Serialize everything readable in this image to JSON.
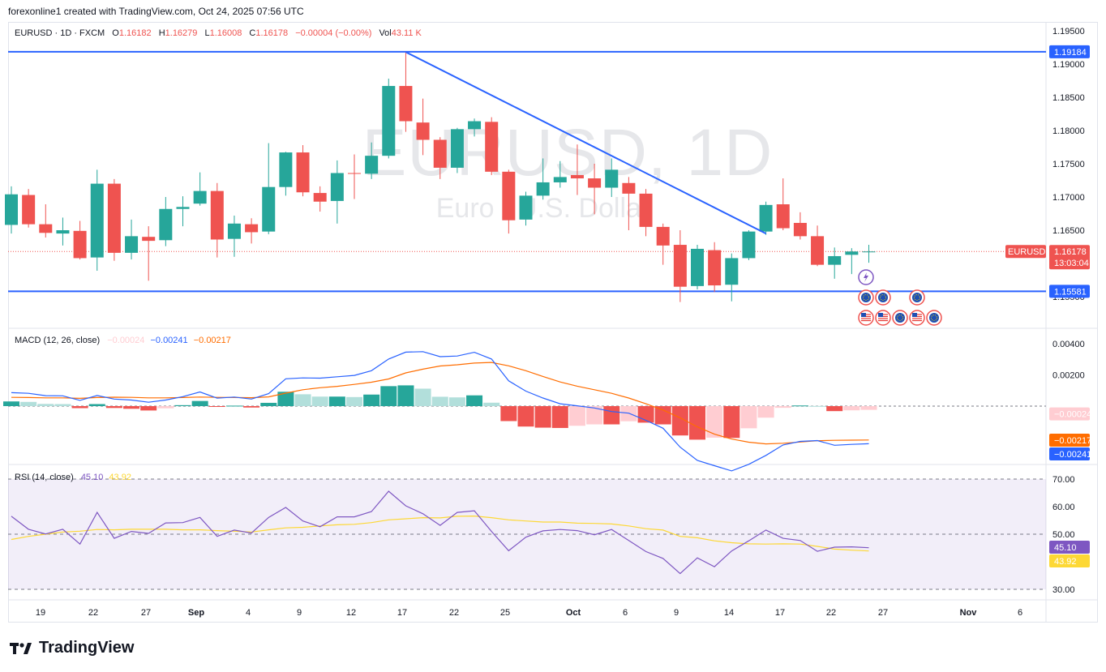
{
  "attribution": "forexonline1 created with TradingView.com, Oct 24, 2025 07:56 UTC",
  "brand": "TradingView",
  "legend": {
    "symbol": "EURUSD · 1D · FXCM",
    "open_label": "O",
    "open": "1.16182",
    "high_label": "H",
    "high": "1.16279",
    "low_label": "L",
    "low": "1.16008",
    "close_label": "C",
    "close": "1.16178",
    "change": "−0.00004 (−0.00%)",
    "vol_label": "Vol",
    "vol": "43.11 K"
  },
  "watermark": {
    "symbol": "EURUSD, 1D",
    "description": "Euro / U.S. Dollar"
  },
  "colors": {
    "up": "#26a69a",
    "down": "#ef5350",
    "line": "#2962ff",
    "macd_line": "#2962ff",
    "signal_line": "#ff6d00",
    "rsi_line": "#7e57c2",
    "rsi_ma": "#fdd835",
    "hist_up_strong": "#26a69a",
    "hist_up_weak": "#b2dfdb",
    "hist_down_strong": "#ef5350",
    "hist_down_weak": "#ffcdd2"
  },
  "price_axis": {
    "ticks": [
      "1.19500",
      "1.19000",
      "1.18500",
      "1.18000",
      "1.17500",
      "1.17000",
      "1.16500",
      "1.16000",
      "1.15500"
    ]
  },
  "price_tags": {
    "resistance": "1.19184",
    "support": "1.15581",
    "current_symbol": "EURUSD",
    "current_price": "1.16178",
    "countdown": "13:03:04"
  },
  "macd": {
    "title": "MACD (12, 26, close)",
    "hist_value": "−0.00024",
    "macd_value": "−0.00241",
    "signal_value": "−0.00217",
    "axis_ticks": [
      "0.00400",
      "0.00200"
    ],
    "tag_hist": "−0.00024",
    "tag_signal": "−0.00217",
    "tag_macd": "−0.00241"
  },
  "rsi": {
    "title": "RSI (14, close)",
    "rsi_value": "45.10",
    "ma_value": "43.92",
    "axis_ticks": [
      "70.00",
      "60.00",
      "50.00",
      "30.00"
    ],
    "tag_rsi": "45.10",
    "tag_ma": "43.92"
  },
  "time_axis": {
    "labels": [
      "19",
      "22",
      "27",
      "Sep",
      "4",
      "9",
      "12",
      "17",
      "22",
      "25",
      "Oct",
      "6",
      "9",
      "14",
      "17",
      "22",
      "27",
      "Nov",
      "6"
    ],
    "bold": [
      "Sep",
      "Oct",
      "Nov"
    ]
  },
  "chart_data": {
    "type": "candlestick",
    "symbol": "EURUSD",
    "timeframe": "1D",
    "source": "FXCM",
    "ylim": [
      1.1535,
      1.1962
    ],
    "horizontal_lines": [
      1.19184,
      1.15581
    ],
    "trendline": {
      "from": {
        "date": "Sep 17",
        "price": 1.1918
      },
      "to": {
        "date": "Oct 16",
        "price": 1.1645
      }
    },
    "candles": [
      {
        "date": "Aug 15",
        "o": 1.1658,
        "h": 1.1716,
        "l": 1.1645,
        "c": 1.1704
      },
      {
        "date": "Aug 18",
        "o": 1.1703,
        "h": 1.1712,
        "l": 1.1654,
        "c": 1.1659
      },
      {
        "date": "Aug 19",
        "o": 1.1659,
        "h": 1.1689,
        "l": 1.1639,
        "c": 1.1646
      },
      {
        "date": "Aug 20",
        "o": 1.1645,
        "h": 1.1669,
        "l": 1.1627,
        "c": 1.165
      },
      {
        "date": "Aug 21",
        "o": 1.1649,
        "h": 1.1664,
        "l": 1.1606,
        "c": 1.1608
      },
      {
        "date": "Aug 22",
        "o": 1.1609,
        "h": 1.1741,
        "l": 1.1589,
        "c": 1.172
      },
      {
        "date": "Aug 25",
        "o": 1.172,
        "h": 1.1727,
        "l": 1.1604,
        "c": 1.1616
      },
      {
        "date": "Aug 26",
        "o": 1.1616,
        "h": 1.1666,
        "l": 1.1606,
        "c": 1.1641
      },
      {
        "date": "Aug 27",
        "o": 1.164,
        "h": 1.1656,
        "l": 1.1574,
        "c": 1.1634
      },
      {
        "date": "Aug 28",
        "o": 1.1635,
        "h": 1.17,
        "l": 1.1626,
        "c": 1.1682
      },
      {
        "date": "Aug 29",
        "o": 1.1682,
        "h": 1.1701,
        "l": 1.1656,
        "c": 1.1685
      },
      {
        "date": "Sep 01",
        "o": 1.169,
        "h": 1.1737,
        "l": 1.1687,
        "c": 1.1709
      },
      {
        "date": "Sep 02",
        "o": 1.1709,
        "h": 1.1721,
        "l": 1.1609,
        "c": 1.1636
      },
      {
        "date": "Sep 03",
        "o": 1.1637,
        "h": 1.1672,
        "l": 1.161,
        "c": 1.166
      },
      {
        "date": "Sep 04",
        "o": 1.1659,
        "h": 1.1668,
        "l": 1.163,
        "c": 1.1647
      },
      {
        "date": "Sep 05",
        "o": 1.1648,
        "h": 1.1781,
        "l": 1.1644,
        "c": 1.1715
      },
      {
        "date": "Sep 08",
        "o": 1.1715,
        "h": 1.1768,
        "l": 1.1702,
        "c": 1.1767
      },
      {
        "date": "Sep 09",
        "o": 1.1767,
        "h": 1.1778,
        "l": 1.1701,
        "c": 1.1707
      },
      {
        "date": "Sep 10",
        "o": 1.1706,
        "h": 1.1716,
        "l": 1.1678,
        "c": 1.1693
      },
      {
        "date": "Sep 11",
        "o": 1.1694,
        "h": 1.1755,
        "l": 1.166,
        "c": 1.1736
      },
      {
        "date": "Sep 12",
        "o": 1.1736,
        "h": 1.1764,
        "l": 1.1697,
        "c": 1.1735
      },
      {
        "date": "Sep 15",
        "o": 1.1735,
        "h": 1.1782,
        "l": 1.1727,
        "c": 1.1762
      },
      {
        "date": "Sep 16",
        "o": 1.1762,
        "h": 1.1878,
        "l": 1.1758,
        "c": 1.1867
      },
      {
        "date": "Sep 17",
        "o": 1.1867,
        "h": 1.1918,
        "l": 1.1798,
        "c": 1.1814
      },
      {
        "date": "Sep 18",
        "o": 1.1812,
        "h": 1.1848,
        "l": 1.1763,
        "c": 1.1786
      },
      {
        "date": "Sep 19",
        "o": 1.1786,
        "h": 1.179,
        "l": 1.1727,
        "c": 1.1744
      },
      {
        "date": "Sep 22",
        "o": 1.1744,
        "h": 1.1804,
        "l": 1.1736,
        "c": 1.1802
      },
      {
        "date": "Sep 23",
        "o": 1.1802,
        "h": 1.1818,
        "l": 1.1791,
        "c": 1.1814
      },
      {
        "date": "Sep 24",
        "o": 1.1813,
        "h": 1.182,
        "l": 1.1733,
        "c": 1.1738
      },
      {
        "date": "Sep 25",
        "o": 1.1738,
        "h": 1.1741,
        "l": 1.1645,
        "c": 1.1665
      },
      {
        "date": "Sep 26",
        "o": 1.1666,
        "h": 1.1708,
        "l": 1.1657,
        "c": 1.1702
      },
      {
        "date": "Sep 29",
        "o": 1.1702,
        "h": 1.1758,
        "l": 1.1696,
        "c": 1.1722
      },
      {
        "date": "Sep 30",
        "o": 1.1722,
        "h": 1.1754,
        "l": 1.1714,
        "c": 1.173
      },
      {
        "date": "Oct 01",
        "o": 1.1733,
        "h": 1.1779,
        "l": 1.1703,
        "c": 1.1728
      },
      {
        "date": "Oct 02",
        "o": 1.1728,
        "h": 1.175,
        "l": 1.1674,
        "c": 1.1714
      },
      {
        "date": "Oct 03",
        "o": 1.1714,
        "h": 1.1758,
        "l": 1.17,
        "c": 1.1741
      },
      {
        "date": "Oct 06",
        "o": 1.1721,
        "h": 1.173,
        "l": 1.165,
        "c": 1.1705
      },
      {
        "date": "Oct 07",
        "o": 1.1705,
        "h": 1.1712,
        "l": 1.1641,
        "c": 1.1655
      },
      {
        "date": "Oct 08",
        "o": 1.1655,
        "h": 1.166,
        "l": 1.1598,
        "c": 1.1627
      },
      {
        "date": "Oct 09",
        "o": 1.1628,
        "h": 1.165,
        "l": 1.1542,
        "c": 1.1565
      },
      {
        "date": "Oct 10",
        "o": 1.1566,
        "h": 1.1628,
        "l": 1.1561,
        "c": 1.1622
      },
      {
        "date": "Oct 13",
        "o": 1.162,
        "h": 1.1632,
        "l": 1.1557,
        "c": 1.1567
      },
      {
        "date": "Oct 14",
        "o": 1.1568,
        "h": 1.1615,
        "l": 1.1543,
        "c": 1.1608
      },
      {
        "date": "Oct 15",
        "o": 1.1608,
        "h": 1.165,
        "l": 1.1605,
        "c": 1.1648
      },
      {
        "date": "Oct 16",
        "o": 1.1648,
        "h": 1.1693,
        "l": 1.1643,
        "c": 1.1688
      },
      {
        "date": "Oct 17",
        "o": 1.1689,
        "h": 1.1728,
        "l": 1.165,
        "c": 1.1653
      },
      {
        "date": "Oct 20",
        "o": 1.1661,
        "h": 1.1677,
        "l": 1.1636,
        "c": 1.1641
      },
      {
        "date": "Oct 21",
        "o": 1.1641,
        "h": 1.1657,
        "l": 1.1596,
        "c": 1.1598
      },
      {
        "date": "Oct 22",
        "o": 1.1598,
        "h": 1.1624,
        "l": 1.1577,
        "c": 1.1611
      },
      {
        "date": "Oct 23",
        "o": 1.1613,
        "h": 1.1623,
        "l": 1.1584,
        "c": 1.1618
      },
      {
        "date": "Oct 24",
        "o": 1.1618,
        "h": 1.1628,
        "l": 1.1601,
        "c": 1.1618
      }
    ],
    "macd": {
      "ylim": [
        -0.0036,
        0.0054
      ],
      "macd": [
        0.00086,
        0.00082,
        0.00067,
        0.00066,
        0.00037,
        0.00068,
        0.00045,
        0.00039,
        0.00025,
        0.00039,
        0.00061,
        0.00091,
        0.00051,
        0.00058,
        0.00045,
        0.0008,
        0.00175,
        0.00181,
        0.00179,
        0.00188,
        0.00197,
        0.00227,
        0.00302,
        0.00346,
        0.00349,
        0.00317,
        0.00321,
        0.00345,
        0.00302,
        0.00162,
        0.00096,
        0.00052,
        0.00015,
        2e-05,
        -0.00012,
        -0.00035,
        -0.00045,
        -0.00091,
        -0.00142,
        -0.00263,
        -0.00348,
        -0.00382,
        -0.00415,
        -0.00373,
        -0.00316,
        -0.00249,
        -0.00226,
        -0.00221,
        -0.00251,
        -0.00245,
        -0.00241
      ],
      "signal": [
        0.00056,
        0.00055,
        0.00053,
        0.00053,
        0.0005,
        0.00055,
        0.00057,
        0.00056,
        0.00053,
        0.00053,
        0.00055,
        0.00058,
        0.00056,
        0.00055,
        0.00054,
        0.00059,
        0.00083,
        0.00105,
        0.00118,
        0.00127,
        0.00139,
        0.00153,
        0.00174,
        0.00213,
        0.00237,
        0.00257,
        0.00265,
        0.00276,
        0.0028,
        0.00258,
        0.00227,
        0.0019,
        0.00155,
        0.00128,
        0.00105,
        0.00082,
        0.00052,
        0.00015,
        -0.00025,
        -0.00075,
        -0.00133,
        -0.0018,
        -0.00211,
        -0.00231,
        -0.00242,
        -0.00238,
        -0.0023,
        -0.00222,
        -0.00219,
        -0.00218,
        -0.00217
      ],
      "histogram": [
        0.0003,
        0.00027,
        0.00014,
        0.00013,
        -0.00013,
        0.00013,
        -0.00012,
        -0.00017,
        -0.00028,
        -0.00014,
        6e-05,
        0.00033,
        -5e-05,
        3e-05,
        -9e-05,
        0.00021,
        0.00092,
        0.00076,
        0.00061,
        0.00061,
        0.00058,
        0.00074,
        0.00128,
        0.00133,
        0.00112,
        0.0006,
        0.00056,
        0.00069,
        0.00022,
        -0.00096,
        -0.00131,
        -0.00138,
        -0.0014,
        -0.00126,
        -0.00117,
        -0.00117,
        -0.00097,
        -0.00106,
        -0.00117,
        -0.00188,
        -0.00215,
        -0.00202,
        -0.00204,
        -0.00142,
        -0.00074,
        -0.00011,
        4e-05,
        1e-05,
        -0.00032,
        -0.00027,
        -0.00024
      ]
    },
    "rsi": {
      "ylim": [
        26,
        74
      ],
      "levels": [
        70,
        50,
        30
      ],
      "rsi": [
        56.5,
        51.8,
        50.1,
        51.8,
        46.4,
        57.9,
        48.5,
        51.0,
        50.3,
        54.1,
        54.2,
        56.1,
        49.2,
        51.5,
        50.4,
        56.1,
        59.7,
        54.8,
        52.7,
        56.3,
        56.3,
        58.2,
        65.6,
        60.3,
        57.4,
        53.2,
        57.9,
        58.5,
        51.0,
        44.0,
        48.9,
        51.2,
        51.7,
        51.3,
        49.8,
        51.7,
        47.7,
        43.7,
        41.2,
        35.7,
        41.4,
        38.2,
        43.9,
        47.6,
        51.5,
        48.5,
        47.7,
        43.8,
        45.3,
        45.4,
        45.1
      ],
      "ma": [
        48.1,
        49.2,
        50.0,
        50.8,
        51.1,
        51.7,
        51.6,
        51.8,
        51.8,
        51.8,
        51.6,
        51.6,
        51.3,
        51.1,
        50.8,
        51.6,
        52.3,
        52.5,
        53.0,
        53.4,
        53.6,
        54.2,
        55.2,
        55.6,
        56.0,
        55.9,
        56.5,
        56.6,
        56.0,
        55.2,
        54.8,
        54.4,
        54.4,
        54.0,
        53.9,
        53.7,
        53.0,
        52.0,
        51.5,
        49.2,
        48.7,
        47.6,
        46.9,
        46.5,
        46.4,
        46.5,
        46.4,
        45.6,
        44.6,
        44.2,
        43.9
      ]
    }
  }
}
